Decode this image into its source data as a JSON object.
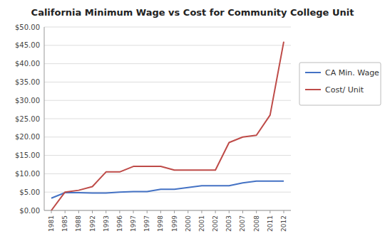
{
  "chart_data": {
    "type": "line",
    "title": "California Minimum Wage vs Cost for Community College Unit",
    "categories": [
      "1981",
      "1985",
      "1988",
      "1992",
      "1993",
      "1996",
      "1997",
      "1997",
      "1998",
      "1999",
      "2000",
      "2001",
      "2002",
      "2003",
      "2007",
      "2008",
      "2011",
      "2012"
    ],
    "series": [
      {
        "name": "CA Min. Wage",
        "color": "#4472C4",
        "values": [
          3.35,
          4.85,
          4.85,
          4.75,
          4.75,
          5.0,
          5.15,
          5.15,
          5.75,
          5.75,
          6.25,
          6.75,
          6.75,
          6.75,
          7.5,
          8.0,
          8.0,
          8.0
        ]
      },
      {
        "name": "Cost/ Unit",
        "color": "#BE4B48",
        "values": [
          0.0,
          5.0,
          5.5,
          6.5,
          10.5,
          10.5,
          12.0,
          12.0,
          12.0,
          11.0,
          11.0,
          11.0,
          11.0,
          18.5,
          20.0,
          20.5,
          26.0,
          46.0
        ]
      }
    ],
    "ylim": [
      0,
      50
    ],
    "yticks": [
      {
        "value": 0,
        "label": "$0.00"
      },
      {
        "value": 5,
        "label": "$5.00"
      },
      {
        "value": 10,
        "label": "$10.00"
      },
      {
        "value": 15,
        "label": "$15.00"
      },
      {
        "value": 20,
        "label": "$20.00"
      },
      {
        "value": 25,
        "label": "$25.00"
      },
      {
        "value": 30,
        "label": "$30.00"
      },
      {
        "value": 35,
        "label": "$35.00"
      },
      {
        "value": 40,
        "label": "$40.00"
      },
      {
        "value": 45,
        "label": "$45.00"
      },
      {
        "value": 50,
        "label": "$50.00"
      }
    ],
    "grid": true,
    "legend": "right"
  }
}
